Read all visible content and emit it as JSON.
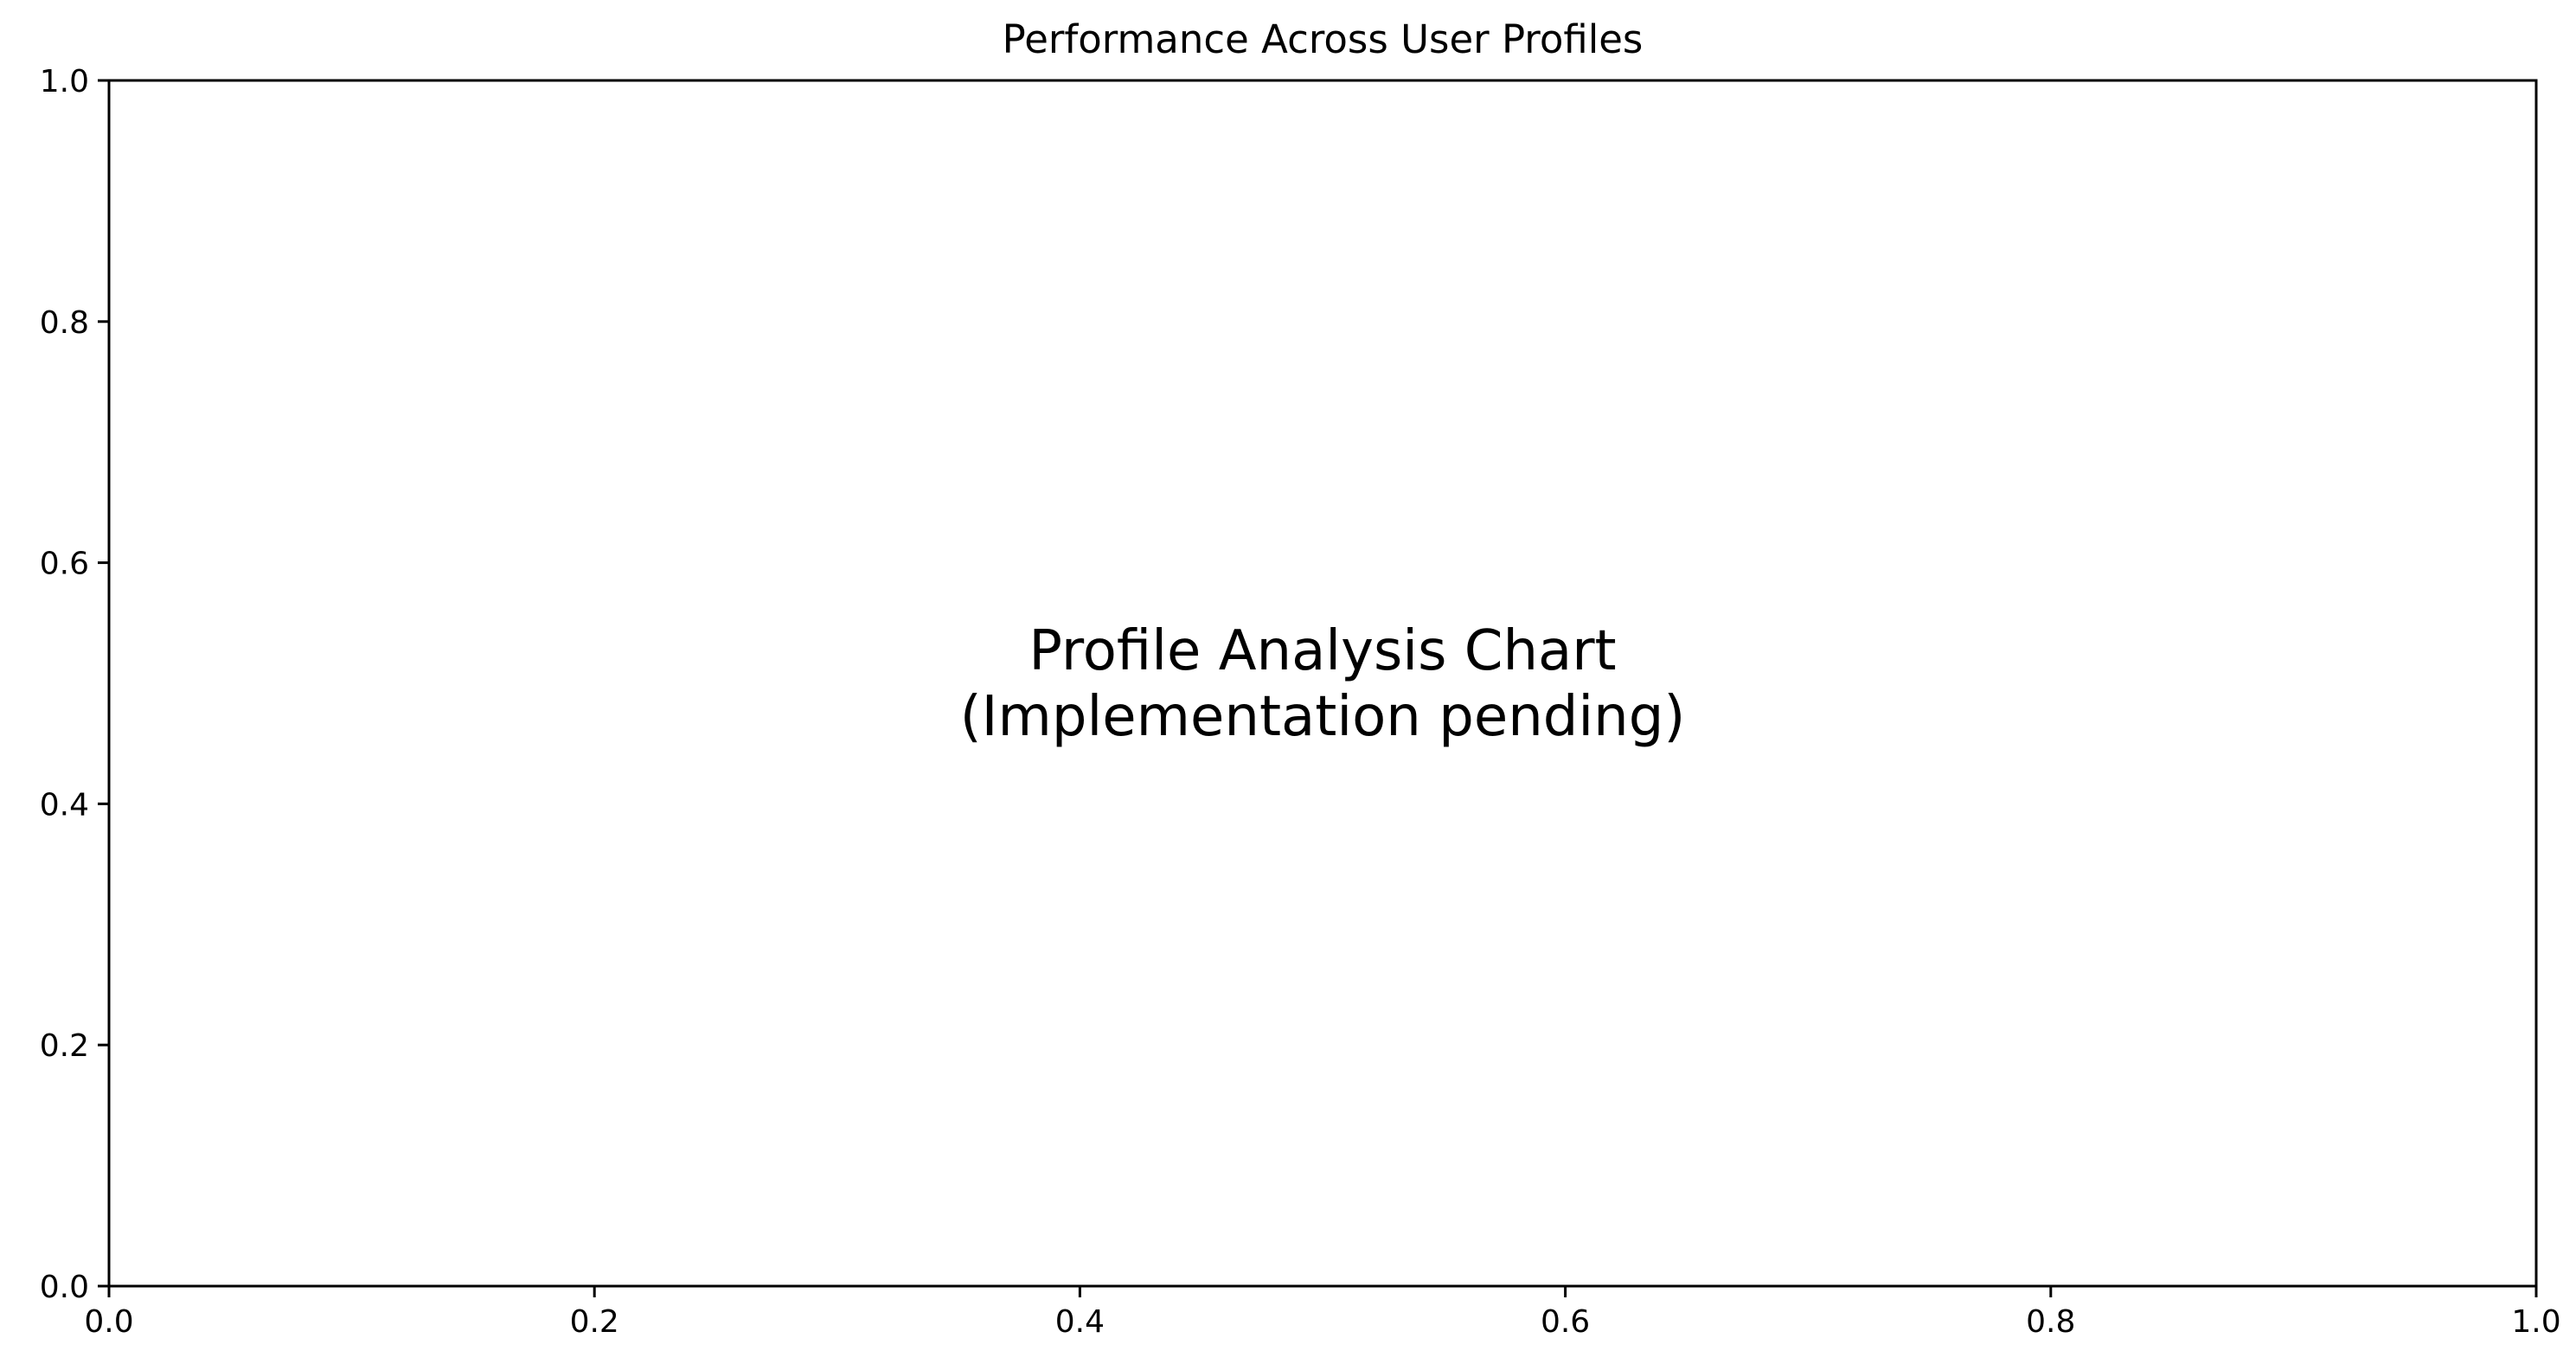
{
  "chart_data": {
    "type": "line",
    "title": "Performance Across User Profiles",
    "xlabel": "",
    "ylabel": "",
    "xlim": [
      0,
      1
    ],
    "ylim": [
      0,
      1
    ],
    "x_ticks": [
      0.0,
      0.2,
      0.4,
      0.6,
      0.8,
      1.0
    ],
    "y_ticks": [
      0.0,
      0.2,
      0.4,
      0.6,
      0.8,
      1.0
    ],
    "x_tick_labels": [
      "0.0",
      "0.2",
      "0.4",
      "0.6",
      "0.8",
      "1.0"
    ],
    "y_tick_labels": [
      "0.0",
      "0.2",
      "0.4",
      "0.6",
      "0.8",
      "1.0"
    ],
    "grid": false,
    "legend": "none",
    "series": [],
    "annotations": [
      {
        "lines": [
          "Profile Analysis Chart",
          "(Implementation pending)"
        ],
        "x": 0.5,
        "y": 0.5
      }
    ]
  },
  "colors": {
    "axis": "#000000",
    "background": "#ffffff",
    "text": "#000000"
  }
}
